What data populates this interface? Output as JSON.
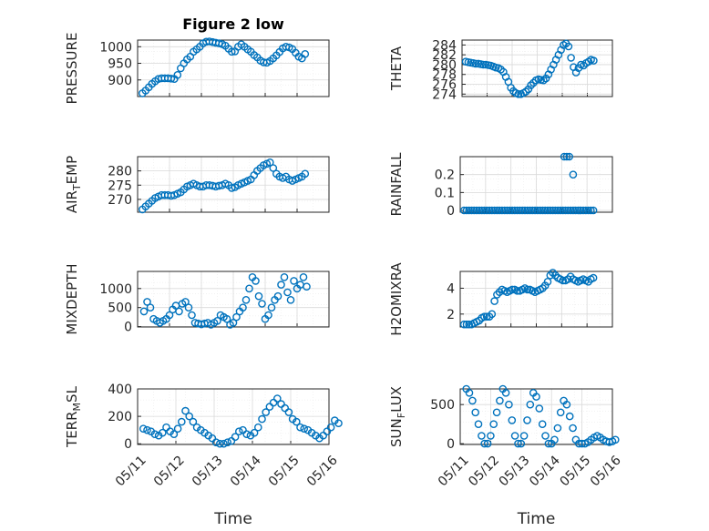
{
  "chart_data": [
    {
      "type": "scatter",
      "id": "pressure",
      "title": "Figure 2 low",
      "xlabel": "",
      "ylabel": [
        {
          "t": "PRESSURE"
        }
      ],
      "x": [
        0.15,
        0.25,
        0.35,
        0.45,
        0.55,
        0.65,
        0.75,
        0.85,
        0.95,
        1.05,
        1.15,
        1.25,
        1.35,
        1.45,
        1.55,
        1.65,
        1.75,
        1.85,
        1.95,
        2.05,
        2.15,
        2.25,
        2.35,
        2.45,
        2.55,
        2.65,
        2.75,
        2.85,
        2.95,
        3.05,
        3.15,
        3.25,
        3.35,
        3.45,
        3.55,
        3.65,
        3.75,
        3.85,
        3.95,
        4.05,
        4.15,
        4.25,
        4.35,
        4.45,
        4.55,
        4.65,
        4.75,
        4.85,
        4.95,
        5.05,
        5.15,
        5.25
      ],
      "y": [
        860,
        868,
        878,
        888,
        896,
        903,
        905,
        905,
        905,
        904,
        903,
        915,
        935,
        950,
        962,
        970,
        985,
        992,
        1000,
        1010,
        1015,
        1016,
        1014,
        1012,
        1010,
        1008,
        1003,
        994,
        985,
        986,
        1000,
        1007,
        1000,
        992,
        985,
        975,
        968,
        958,
        953,
        952,
        957,
        965,
        974,
        984,
        995,
        1000,
        998,
        993,
        982,
        970,
        965,
        978
      ],
      "ylim": [
        850,
        1020
      ],
      "yticks": [
        900,
        950,
        1000
      ],
      "xlim": [
        0,
        6
      ],
      "xtick_labels": []
    },
    {
      "type": "scatter",
      "id": "theta",
      "xlabel": "",
      "ylabel": [
        {
          "t": "THETA"
        }
      ],
      "x": [
        0.15,
        0.25,
        0.35,
        0.45,
        0.55,
        0.65,
        0.75,
        0.85,
        0.95,
        1.05,
        1.15,
        1.25,
        1.35,
        1.45,
        1.55,
        1.65,
        1.75,
        1.85,
        1.95,
        2.05,
        2.15,
        2.25,
        2.35,
        2.45,
        2.55,
        2.65,
        2.75,
        2.85,
        2.95,
        3.05,
        3.15,
        3.25,
        3.35,
        3.45,
        3.55,
        3.65,
        3.75,
        3.85,
        3.95,
        4.05,
        4.15,
        4.25,
        4.35,
        4.45,
        4.55,
        4.65,
        4.75,
        4.85,
        4.95,
        5.05,
        5.15,
        5.25
      ],
      "y": [
        280.6,
        280.5,
        280.4,
        280.3,
        280.2,
        280.2,
        280.1,
        280.0,
        280.0,
        279.9,
        279.8,
        279.6,
        279.4,
        279.3,
        279.0,
        278.5,
        277.5,
        276.5,
        275.3,
        274.6,
        274.2,
        274.0,
        274.0,
        274.2,
        274.5,
        275.0,
        275.8,
        276.3,
        276.8,
        277.0,
        276.9,
        276.8,
        277.2,
        278.0,
        279.0,
        280.0,
        281.0,
        282.0,
        283.0,
        284.0,
        284.3,
        283.7,
        281.4,
        279.5,
        278.4,
        279.3,
        280.0,
        279.8,
        280.3,
        280.6,
        281.0,
        280.8
      ],
      "ylim": [
        273.5,
        285
      ],
      "yticks": [
        274,
        276,
        278,
        280,
        282,
        284
      ],
      "xlim": [
        0,
        6
      ],
      "xtick_labels": []
    },
    {
      "type": "scatter",
      "id": "air_temp",
      "xlabel": "",
      "ylabel": [
        {
          "t": "AIR"
        },
        {
          "t": "T",
          "sub": true
        },
        {
          "t": "EMP"
        }
      ],
      "x": [
        0.15,
        0.25,
        0.35,
        0.45,
        0.55,
        0.65,
        0.75,
        0.85,
        0.95,
        1.05,
        1.15,
        1.25,
        1.35,
        1.45,
        1.55,
        1.65,
        1.75,
        1.85,
        1.95,
        2.05,
        2.15,
        2.25,
        2.35,
        2.45,
        2.55,
        2.65,
        2.75,
        2.85,
        2.95,
        3.05,
        3.15,
        3.25,
        3.35,
        3.45,
        3.55,
        3.65,
        3.75,
        3.85,
        3.95,
        4.05,
        4.15,
        4.25,
        4.35,
        4.45,
        4.55,
        4.65,
        4.75,
        4.85,
        4.95,
        5.05,
        5.15,
        5.25
      ],
      "y": [
        266.5,
        267.5,
        268.5,
        269.5,
        270.5,
        271.0,
        271.5,
        271.5,
        271.5,
        271.3,
        271.5,
        272.0,
        272.5,
        273.5,
        274.5,
        275.0,
        275.5,
        275.0,
        274.5,
        274.5,
        275.0,
        275.0,
        274.8,
        274.5,
        274.8,
        275.0,
        275.5,
        275.0,
        274.0,
        274.3,
        275.0,
        275.5,
        276.0,
        276.5,
        277.0,
        278.5,
        280.0,
        281.0,
        282.0,
        282.5,
        283.0,
        281.0,
        279.0,
        278.0,
        277.5,
        278.0,
        277.0,
        276.5,
        277.0,
        277.5,
        278.0,
        279.0
      ],
      "ylim": [
        265.5,
        285
      ],
      "yticks": [
        270,
        275,
        280
      ],
      "xlim": [
        0,
        6
      ],
      "xtick_labels": []
    },
    {
      "type": "scatter",
      "id": "rainfall",
      "xlabel": "",
      "ylabel": [
        {
          "t": "RAINFALL"
        }
      ],
      "x": [
        0.15,
        0.25,
        0.35,
        0.45,
        0.55,
        0.65,
        0.75,
        0.85,
        0.95,
        1.05,
        1.15,
        1.25,
        1.35,
        1.45,
        1.55,
        1.65,
        1.75,
        1.85,
        1.95,
        2.05,
        2.15,
        2.25,
        2.35,
        2.45,
        2.55,
        2.65,
        2.75,
        2.85,
        2.95,
        3.05,
        3.15,
        3.25,
        3.35,
        3.45,
        3.55,
        3.65,
        3.75,
        3.85,
        3.95,
        4.05,
        4.15,
        4.25,
        4.35,
        4.45,
        4.55,
        4.65,
        4.75,
        4.85,
        4.95,
        5.05,
        5.15,
        5.25,
        4.1,
        4.2,
        4.3
      ],
      "y": [
        0,
        0,
        0,
        0,
        0,
        0,
        0,
        0,
        0,
        0,
        0,
        0,
        0,
        0,
        0,
        0,
        0,
        0,
        0,
        0,
        0,
        0,
        0,
        0,
        0,
        0,
        0,
        0,
        0,
        0,
        0,
        0,
        0,
        0,
        0,
        0,
        0,
        0,
        0,
        0,
        0,
        0,
        0,
        0,
        0,
        0,
        0,
        0,
        0,
        0,
        0,
        0,
        0.3,
        0.3,
        0.3
      ],
      "ylim": [
        -0.01,
        0.3
      ],
      "yticks": [
        0,
        0.1,
        0.2
      ],
      "xlim": [
        0,
        6
      ],
      "extra_points": [
        [
          4.45,
          0.2
        ]
      ],
      "xtick_labels": []
    },
    {
      "type": "scatter",
      "id": "mixdepth",
      "xlabel": "",
      "ylabel": [
        {
          "t": "MIXDEPTH"
        }
      ],
      "x": [
        0.2,
        0.3,
        0.4,
        0.5,
        0.6,
        0.7,
        0.8,
        0.9,
        1.0,
        1.1,
        1.2,
        1.3,
        1.4,
        1.5,
        1.6,
        1.7,
        1.8,
        1.9,
        2.0,
        2.1,
        2.2,
        2.3,
        2.4,
        2.5,
        2.6,
        2.7,
        2.8,
        2.9,
        3.0,
        3.1,
        3.2,
        3.3,
        3.4,
        3.5,
        3.6,
        3.7,
        3.8,
        3.9,
        4.0,
        4.1,
        4.2,
        4.3,
        4.4,
        4.5,
        4.6,
        4.7,
        4.8,
        4.9,
        5.0,
        5.1,
        5.2,
        5.3
      ],
      "y": [
        400,
        650,
        500,
        200,
        150,
        100,
        150,
        200,
        300,
        450,
        550,
        400,
        600,
        650,
        500,
        300,
        100,
        80,
        60,
        80,
        100,
        50,
        100,
        150,
        300,
        250,
        200,
        50,
        100,
        250,
        400,
        500,
        700,
        1000,
        1300,
        1200,
        800,
        600,
        200,
        300,
        500,
        700,
        800,
        1100,
        1300,
        900,
        700,
        1200,
        1000,
        1100,
        1300,
        1050
      ],
      "ylim": [
        -10,
        1450
      ],
      "yticks": [
        0,
        500,
        1000
      ],
      "xlim": [
        0,
        6
      ],
      "xtick_labels": []
    },
    {
      "type": "scatter",
      "id": "h2omixra",
      "xlabel": "",
      "ylabel": [
        {
          "t": "H2OMIXRA"
        }
      ],
      "x": [
        0.15,
        0.25,
        0.35,
        0.45,
        0.55,
        0.65,
        0.75,
        0.85,
        0.95,
        1.05,
        1.15,
        1.25,
        1.35,
        1.45,
        1.55,
        1.65,
        1.75,
        1.85,
        1.95,
        2.05,
        2.15,
        2.25,
        2.35,
        2.45,
        2.55,
        2.65,
        2.75,
        2.85,
        2.95,
        3.05,
        3.15,
        3.25,
        3.35,
        3.45,
        3.55,
        3.65,
        3.75,
        3.85,
        3.95,
        4.05,
        4.15,
        4.25,
        4.35,
        4.45,
        4.55,
        4.65,
        4.75,
        4.85,
        4.95,
        5.05,
        5.15,
        5.25
      ],
      "y": [
        1.2,
        1.2,
        1.2,
        1.2,
        1.3,
        1.4,
        1.5,
        1.7,
        1.8,
        1.8,
        1.8,
        2.0,
        3.0,
        3.5,
        3.7,
        3.9,
        3.8,
        3.7,
        3.8,
        3.9,
        3.9,
        3.8,
        3.8,
        3.9,
        4.0,
        3.9,
        3.9,
        3.8,
        3.7,
        3.8,
        3.9,
        4.0,
        4.2,
        4.5,
        5.0,
        5.2,
        5.0,
        4.8,
        4.7,
        4.6,
        4.6,
        4.7,
        4.9,
        4.7,
        4.6,
        4.5,
        4.6,
        4.7,
        4.6,
        4.5,
        4.7,
        4.8
      ],
      "ylim": [
        1,
        5.3
      ],
      "yticks": [
        2,
        4
      ],
      "xlim": [
        0,
        6
      ],
      "xtick_labels": []
    },
    {
      "type": "scatter",
      "id": "terr_msl",
      "xlabel": "Time",
      "ylabel": [
        {
          "t": "TERR"
        },
        {
          "t": "M",
          "sub": true
        },
        {
          "t": "SL"
        }
      ],
      "x": [
        0.15,
        0.25,
        0.35,
        0.45,
        0.55,
        0.65,
        0.75,
        0.85,
        0.95,
        1.05,
        1.15,
        1.25,
        1.35,
        1.45,
        1.55,
        1.65,
        1.75,
        1.85,
        1.95,
        2.05,
        2.15,
        2.25,
        2.35,
        2.45,
        2.55,
        2.65,
        2.75,
        2.85,
        2.95,
        3.05,
        3.15,
        3.25,
        3.35,
        3.45,
        3.55,
        3.65,
        3.75,
        3.85,
        3.95,
        4.05,
        4.15,
        4.25,
        4.35,
        4.45,
        4.55,
        4.65,
        4.75,
        4.85,
        4.95,
        5.05,
        5.15,
        5.25
      ],
      "y": [
        110,
        100,
        90,
        70,
        60,
        80,
        120,
        90,
        70,
        110,
        160,
        240,
        200,
        160,
        120,
        100,
        80,
        60,
        40,
        10,
        0,
        0,
        10,
        20,
        50,
        90,
        100,
        70,
        60,
        80,
        120,
        180,
        230,
        270,
        300,
        330,
        290,
        260,
        230,
        180,
        160,
        120,
        110,
        100,
        80,
        60,
        40,
        60,
        90,
        120,
        170,
        150
      ],
      "ylim": [
        -5,
        400
      ],
      "yticks": [
        0,
        200,
        400
      ],
      "xlim": [
        0,
        5
      ],
      "xtick_labels": [
        "05/11",
        "05/12",
        "05/13",
        "05/14",
        "05/15",
        "05/16"
      ]
    },
    {
      "type": "scatter",
      "id": "sun_flux",
      "xlabel": "Time",
      "ylabel": [
        {
          "t": "SUN"
        },
        {
          "t": "F",
          "sub": true
        },
        {
          "t": "LUX"
        }
      ],
      "x": [
        0.2,
        0.3,
        0.4,
        0.5,
        0.6,
        0.7,
        0.8,
        0.9,
        1.0,
        1.1,
        1.2,
        1.3,
        1.4,
        1.5,
        1.6,
        1.7,
        1.8,
        1.9,
        2.0,
        2.1,
        2.2,
        2.3,
        2.4,
        2.5,
        2.6,
        2.7,
        2.8,
        2.9,
        3.0,
        3.1,
        3.2,
        3.3,
        3.4,
        3.5,
        3.6,
        3.7,
        3.8,
        3.9,
        4.0,
        4.1,
        4.2,
        4.3,
        4.4,
        4.5,
        4.6,
        4.7,
        4.8,
        4.9,
        5.0,
        5.1
      ],
      "y": [
        700,
        650,
        550,
        400,
        250,
        100,
        0,
        0,
        100,
        250,
        400,
        550,
        700,
        650,
        500,
        300,
        100,
        0,
        0,
        100,
        300,
        500,
        650,
        600,
        450,
        250,
        100,
        0,
        0,
        50,
        200,
        400,
        550,
        500,
        350,
        200,
        50,
        0,
        0,
        0,
        20,
        50,
        80,
        100,
        80,
        50,
        30,
        20,
        30,
        50
      ],
      "ylim": [
        -10,
        700
      ],
      "yticks": [
        0,
        500
      ],
      "xlim": [
        0,
        5
      ],
      "xtick_labels": [
        "05/11",
        "05/12",
        "05/13",
        "05/14",
        "05/15",
        "05/16"
      ]
    }
  ]
}
